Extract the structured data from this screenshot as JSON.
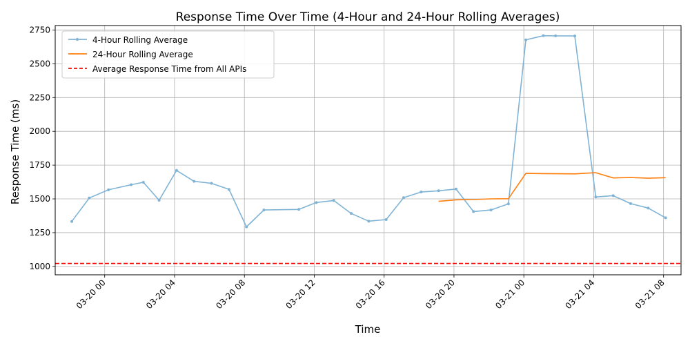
{
  "chart_data": {
    "type": "line",
    "title": "Response Time Over Time (4-Hour and 24-Hour Rolling Averages)",
    "xlabel": "Time",
    "ylabel": "Response Time (ms)",
    "grid": true,
    "legend_position": "top-left",
    "xlim": [
      "2023-03-19T21:10:00",
      "2023-03-21T09:00:00"
    ],
    "ylim": [
      938,
      2783
    ],
    "x_ticks": [
      {
        "t": "2023-03-20T00:00:00",
        "label": "03-20 00"
      },
      {
        "t": "2023-03-20T04:00:00",
        "label": "03-20 04"
      },
      {
        "t": "2023-03-20T08:00:00",
        "label": "03-20 08"
      },
      {
        "t": "2023-03-20T12:00:00",
        "label": "03-20 12"
      },
      {
        "t": "2023-03-20T16:00:00",
        "label": "03-20 16"
      },
      {
        "t": "2023-03-20T20:00:00",
        "label": "03-20 20"
      },
      {
        "t": "2023-03-21T00:00:00",
        "label": "03-21 00"
      },
      {
        "t": "2023-03-21T04:00:00",
        "label": "03-21 04"
      },
      {
        "t": "2023-03-21T08:00:00",
        "label": "03-21 08"
      }
    ],
    "y_ticks": [
      1000,
      1250,
      1500,
      1750,
      2000,
      2250,
      2500,
      2750
    ],
    "series": [
      {
        "name": "4-Hour Rolling Average",
        "color": "#7fb3d5",
        "marker": "circle",
        "points": [
          [
            "2023-03-19T22:07:00",
            1333
          ],
          [
            "2023-03-19T23:07:00",
            1507
          ],
          [
            "2023-03-20T00:13:00",
            1567
          ],
          [
            "2023-03-20T01:31:00",
            1605
          ],
          [
            "2023-03-20T02:13:00",
            1623
          ],
          [
            "2023-03-20T03:07:00",
            1490
          ],
          [
            "2023-03-20T04:07:00",
            1711
          ],
          [
            "2023-03-20T05:07:00",
            1630
          ],
          [
            "2023-03-20T06:07:00",
            1615
          ],
          [
            "2023-03-20T07:07:00",
            1570
          ],
          [
            "2023-03-20T08:07:00",
            1293
          ],
          [
            "2023-03-20T09:07:00",
            1418
          ],
          [
            "2023-03-20T11:07:00",
            1422
          ],
          [
            "2023-03-20T12:07:00",
            1473
          ],
          [
            "2023-03-20T13:07:00",
            1488
          ],
          [
            "2023-03-20T14:07:00",
            1392
          ],
          [
            "2023-03-20T15:07:00",
            1335
          ],
          [
            "2023-03-20T16:07:00",
            1347
          ],
          [
            "2023-03-20T17:07:00",
            1509
          ],
          [
            "2023-03-20T18:07:00",
            1551
          ],
          [
            "2023-03-20T19:07:00",
            1560
          ],
          [
            "2023-03-20T20:07:00",
            1573
          ],
          [
            "2023-03-20T21:07:00",
            1406
          ],
          [
            "2023-03-20T22:07:00",
            1418
          ],
          [
            "2023-03-20T23:07:00",
            1463
          ],
          [
            "2023-03-21T00:07:00",
            2677
          ],
          [
            "2023-03-21T01:07:00",
            2708
          ],
          [
            "2023-03-21T01:49:00",
            2707
          ],
          [
            "2023-03-21T02:55:00",
            2706
          ],
          [
            "2023-03-21T04:07:00",
            1514
          ],
          [
            "2023-03-21T05:07:00",
            1524
          ],
          [
            "2023-03-21T06:07:00",
            1465
          ],
          [
            "2023-03-21T07:07:00",
            1432
          ],
          [
            "2023-03-21T08:07:00",
            1360
          ]
        ]
      },
      {
        "name": "24-Hour Rolling Average",
        "color": "#ff7f0e",
        "marker": "none",
        "points": [
          [
            "2023-03-20T19:07:00",
            1482
          ],
          [
            "2023-03-20T20:07:00",
            1493
          ],
          [
            "2023-03-20T21:07:00",
            1495
          ],
          [
            "2023-03-20T22:07:00",
            1500
          ],
          [
            "2023-03-20T23:07:00",
            1501
          ],
          [
            "2023-03-21T00:07:00",
            1689
          ],
          [
            "2023-03-21T01:07:00",
            1687
          ],
          [
            "2023-03-21T01:49:00",
            1686
          ],
          [
            "2023-03-21T02:55:00",
            1685
          ],
          [
            "2023-03-21T04:07:00",
            1694
          ],
          [
            "2023-03-21T05:07:00",
            1655
          ],
          [
            "2023-03-21T06:07:00",
            1658
          ],
          [
            "2023-03-21T07:07:00",
            1653
          ],
          [
            "2023-03-21T08:07:00",
            1657
          ]
        ]
      }
    ],
    "hlines": [
      {
        "name": "Average Response Time from All APIs",
        "value": 1022,
        "color": "#ff0000",
        "style": "dashed"
      }
    ]
  }
}
